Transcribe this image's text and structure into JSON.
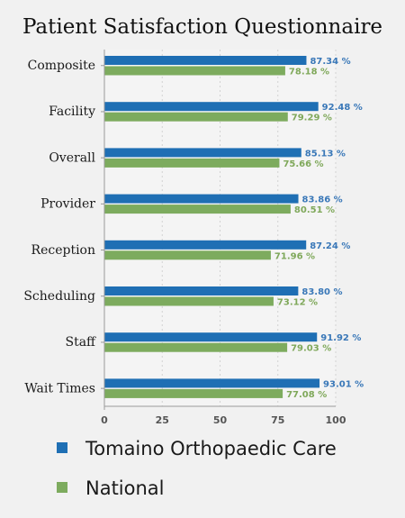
{
  "chart_data": {
    "type": "bar",
    "orientation": "horizontal",
    "title": "Patient Satisfaction Questionnaire",
    "categories": [
      "Composite",
      "Facility",
      "Overall",
      "Provider",
      "Reception",
      "Scheduling",
      "Staff",
      "Wait Times"
    ],
    "series": [
      {
        "name": "Tomaino Orthopaedic Care",
        "color": "#1f6fb4",
        "label_color": "#3a78b8",
        "values": [
          87.34,
          92.48,
          85.13,
          83.86,
          87.24,
          83.8,
          91.92,
          93.01
        ],
        "labels": [
          "87.34 %",
          "92.48 %",
          "85.13 %",
          "83.86 %",
          "87.24 %",
          "83.80 %",
          "91.92 %",
          "93.01 %"
        ]
      },
      {
        "name": "National",
        "color": "#7dab5e",
        "label_color": "#7fa85a",
        "values": [
          78.18,
          79.29,
          75.66,
          80.51,
          71.96,
          73.12,
          79.03,
          77.08
        ],
        "labels": [
          "78.18 %",
          "79.29 %",
          "75.66 %",
          "80.51 %",
          "71.96 %",
          "73.12 %",
          "79.03 %",
          "77.08 %"
        ]
      }
    ],
    "xlim": [
      0,
      100
    ],
    "ticks": [
      0,
      25,
      50,
      75,
      100
    ],
    "tick_labels": [
      "0",
      "25",
      "50",
      "75",
      "100"
    ],
    "grid": true,
    "legend": "bottom"
  }
}
